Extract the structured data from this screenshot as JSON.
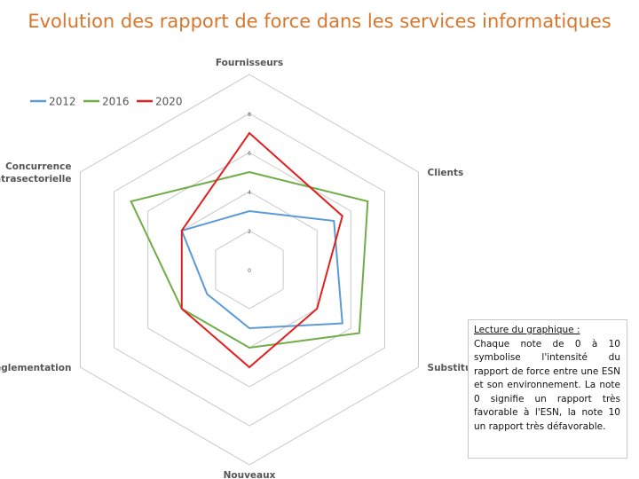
{
  "page": {
    "title": "Evolution des rapport de force dans les services informatiques"
  },
  "note": {
    "heading": "Lecture du graphique :",
    "body": "Chaque note de 0 à 10 symbolise l'intensité du rapport de force entre une ESN et son environnement. La note 0 signifie un rapport très favorable à l'ESN, la note 10 un rapport très défavorable."
  },
  "chart_data": {
    "type": "radar",
    "axes": [
      {
        "label": "Fournisseurs"
      },
      {
        "label": "Clients"
      },
      {
        "label": "Substituts"
      },
      {
        "label": "Nouveaux entrants"
      },
      {
        "label": "Réglementation"
      },
      {
        "label": "Concurrence intrasectorielle"
      }
    ],
    "rlim": [
      0,
      10
    ],
    "ticks": [
      0,
      2,
      4,
      6,
      8
    ],
    "series": [
      {
        "name": "2012",
        "color": "#5b9bd5",
        "values": [
          3,
          5,
          5.5,
          3,
          2.5,
          4
        ]
      },
      {
        "name": "2016",
        "color": "#70ad47",
        "values": [
          5,
          7,
          6.5,
          4,
          4,
          7
        ]
      },
      {
        "name": "2020",
        "color": "#e32020",
        "values": [
          7,
          5.5,
          4,
          5,
          4,
          4
        ]
      }
    ],
    "legend": "top-left"
  }
}
